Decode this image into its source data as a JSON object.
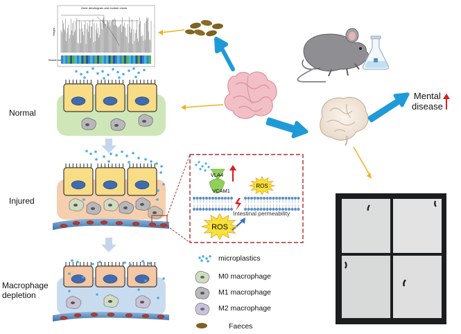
{
  "stages": {
    "normal": "Normal",
    "injured": "Injured",
    "depletion_line1": "Macrophage",
    "depletion_line2": "depletion"
  },
  "dendrogram": {
    "title": "Gene dendrogram and module colors",
    "y_label": "Height",
    "color_row_label": "Module colors"
  },
  "inset": {
    "vla4": "VLA4",
    "vcam1": "VCAM1",
    "ros_small": "ROS",
    "ros_large": "ROS",
    "permeability": "Intestinal permeability"
  },
  "outcome": {
    "line1": "Mental",
    "line2": "disease"
  },
  "legend": [
    {
      "key": "microplastics",
      "label": "microplastics"
    },
    {
      "key": "m0",
      "label": "M0 macrophage"
    },
    {
      "key": "m1",
      "label": "M1 macrophage"
    },
    {
      "key": "m2",
      "label": "M2 macrophage"
    },
    {
      "key": "faeces",
      "label": "Faeces"
    }
  ],
  "colors": {
    "blue_arrow": "#1e9bd7",
    "gold_arrow": "#f2b01e",
    "up_arrow": "#d62020",
    "cell_yellow": "#f8dd86",
    "cell_peach": "#f4c7a5",
    "tissue_green": "#cfe6b8",
    "tissue_peach": "#f6cfae",
    "tissue_blue": "#c9dcef",
    "nucleus": "#3f6bb0",
    "particle": "#47aee0",
    "dashed_frame": "#b02a2a",
    "faeces": "#7e6220",
    "intestine": "#f3bfc6"
  }
}
